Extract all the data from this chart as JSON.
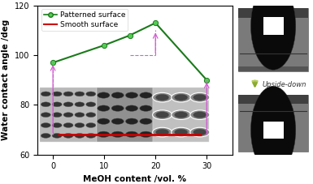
{
  "patterned_x": [
    0,
    10,
    15,
    20,
    30
  ],
  "patterned_y": [
    97,
    104,
    108,
    113,
    90
  ],
  "smooth_y": 68,
  "smooth_x_start": 1,
  "smooth_x_end": 29,
  "ylim": [
    60,
    120
  ],
  "xlim": [
    -3,
    35
  ],
  "xticks": [
    0,
    10,
    20,
    30
  ],
  "yticks": [
    60,
    80,
    100,
    120
  ],
  "xlabel": "MeOH content /vol. %",
  "ylabel": "Water contact angle /deg",
  "legend_patterned": "Patterned surface",
  "legend_smooth": "Smooth surface",
  "line_color_green": "#1a7a1a",
  "line_color_red": "#cc0000",
  "dashed_color": "#d060d0",
  "marker_face": "#55cc55",
  "upside_down_text": "Upside-down",
  "axis_fontsize": 7.5,
  "tick_fontsize": 7,
  "legend_fontsize": 6.5
}
